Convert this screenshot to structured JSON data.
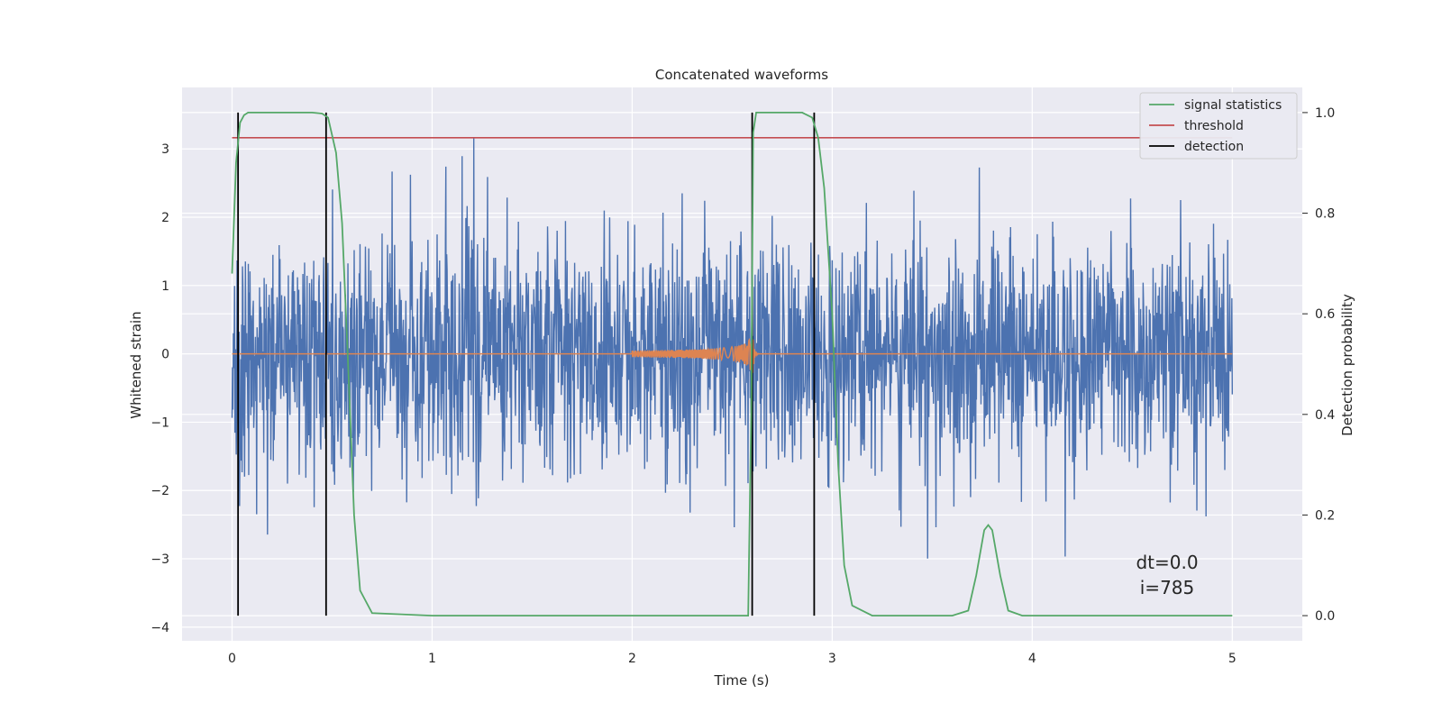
{
  "chart_data": {
    "type": "line",
    "title": "Concatenated waveforms",
    "xlabel": "Time (s)",
    "ylabel": "Whitened strain",
    "ylabel_right": "Detection probability",
    "xlim": [
      -0.25,
      5.35
    ],
    "ylim": [
      -4.2,
      3.9
    ],
    "ylim_right": [
      -0.05,
      1.05
    ],
    "xticks": [
      0,
      1,
      2,
      3,
      4,
      5
    ],
    "yticks": [
      -4,
      -3,
      -2,
      -1,
      0,
      1,
      2,
      3
    ],
    "yticks_right": [
      0.0,
      0.2,
      0.4,
      0.6,
      0.8,
      1.0
    ],
    "xtick_labels": [
      "0",
      "1",
      "2",
      "3",
      "4",
      "5"
    ],
    "ytick_labels": [
      "−4",
      "−3",
      "−2",
      "−1",
      "0",
      "1",
      "2",
      "3"
    ],
    "ytick_right_labels": [
      "0.0",
      "0.2",
      "0.4",
      "0.6",
      "0.8",
      "1.0"
    ],
    "grid": true,
    "legend_position": "top-right",
    "legend": [
      "signal statistics",
      "threshold",
      "detection"
    ],
    "colors": {
      "strain": "#4c72b0",
      "waveform": "#dd8452",
      "statistics": "#55a868",
      "threshold": "#c44e52",
      "detection": "#000000",
      "axes_bg": "#eaeaf2",
      "grid": "#ffffff"
    },
    "strain": {
      "x_range": [
        0,
        5
      ],
      "amplitude_std": 0.85
    },
    "waveform": {
      "t_start": 2.0,
      "t_merge": 2.6,
      "t_end": 2.9
    },
    "statistics": {
      "x": [
        0,
        0.02,
        0.04,
        0.06,
        0.08,
        0.12,
        0.2,
        0.4,
        0.45,
        0.48,
        0.52,
        0.55,
        0.58,
        0.61,
        0.64,
        0.7,
        1.0,
        2.0,
        2.5,
        2.58,
        2.595,
        2.605,
        2.62,
        2.7,
        2.85,
        2.9,
        2.93,
        2.96,
        3.0,
        3.03,
        3.06,
        3.1,
        3.2,
        3.6,
        3.68,
        3.72,
        3.76,
        3.78,
        3.8,
        3.84,
        3.88,
        3.95,
        4.5,
        5.0
      ],
      "y": [
        0.68,
        0.9,
        0.98,
        0.995,
        1.0,
        1.0,
        1.0,
        1.0,
        0.998,
        0.99,
        0.92,
        0.78,
        0.5,
        0.2,
        0.05,
        0.005,
        0.0,
        0.0,
        0.0,
        0.0,
        0.4,
        0.96,
        1.0,
        1.0,
        1.0,
        0.99,
        0.95,
        0.85,
        0.6,
        0.3,
        0.1,
        0.02,
        0.0,
        0.0,
        0.01,
        0.08,
        0.17,
        0.18,
        0.17,
        0.08,
        0.01,
        0.0,
        0.0,
        0.0
      ]
    },
    "threshold": {
      "value": 0.95,
      "x_range": [
        0,
        5
      ]
    },
    "detections": [
      0.03,
      0.47,
      2.6,
      2.91
    ],
    "annotation": [
      "dt=0.0",
      "i=785"
    ]
  }
}
